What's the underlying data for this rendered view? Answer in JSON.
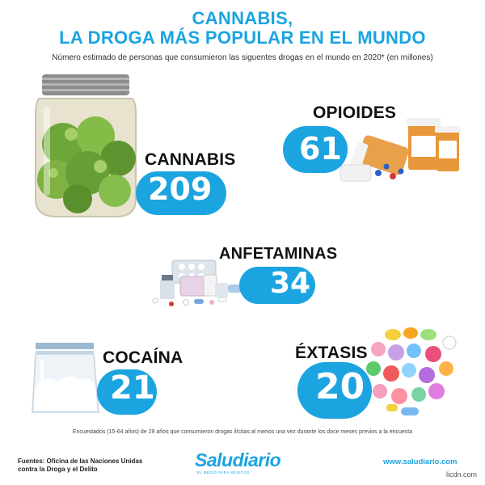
{
  "header": {
    "title_line1": "CANNABIS,",
    "title_line2": "LA DROGA MÁS POPULAR EN EL MUNDO",
    "subtitle": "Número estimado de personas que consumieron las siguentes drogas en el mundo en 2020* (en millones)"
  },
  "chart_data": {
    "type": "bar",
    "categories": [
      "CANNABIS",
      "OPIOIDES",
      "ANFETAMINAS",
      "COCAÍNA",
      "ÉXTASIS"
    ],
    "values": [
      209,
      61,
      34,
      21,
      20
    ],
    "unit": "millones"
  },
  "labels": {
    "cannabis": "CANNABIS",
    "opioides": "OPIOIDES",
    "anfetaminas": "ANFETAMINAS",
    "cocaina": "COCAÍNA",
    "extasis": "ÉXTASIS"
  },
  "values": {
    "cannabis": "209",
    "opioides": "61",
    "anfetaminas": "34",
    "cocaina": "21",
    "extasis": "20"
  },
  "footer": {
    "footnote": "Encuestados (15-64 años) de 29 años que consumieron drogas ilícitas al menos una vez durante los doce meses previos a la encuesta",
    "sources": "Fuentes: Oficina de las Naciones Unidas contra la Droga  y el Delito",
    "logo": "Saludiario",
    "tagline": "EL MEDIO PARA MÉDICOS",
    "website": "www.saludiario.com",
    "watermark": "licdn.com"
  },
  "colors": {
    "accent": "#1ba4e0",
    "text": "#111111"
  }
}
